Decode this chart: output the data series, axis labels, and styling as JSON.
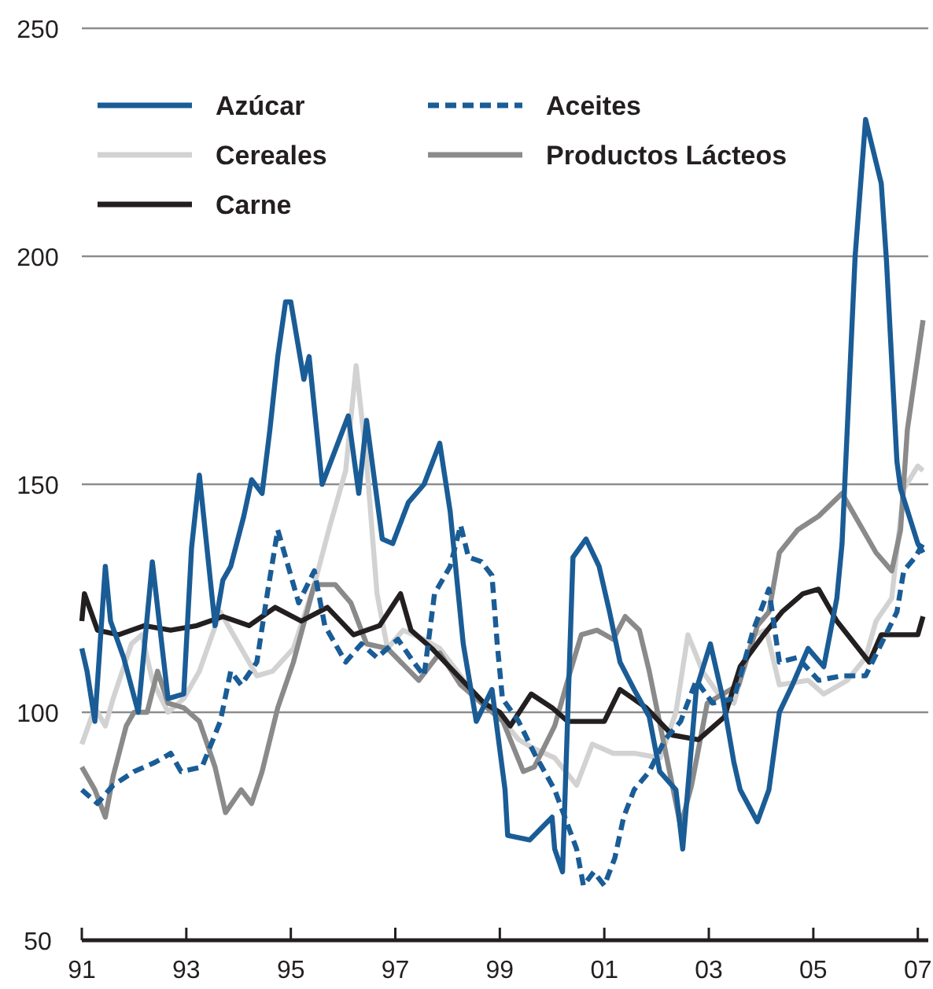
{
  "chart_data": {
    "type": "line",
    "xlim": [
      1991,
      2007.2
    ],
    "xticks": [
      {
        "value": 1991,
        "label": "91"
      },
      {
        "value": 1993,
        "label": "93"
      },
      {
        "value": 1995,
        "label": "95"
      },
      {
        "value": 1997,
        "label": "97"
      },
      {
        "value": 1999,
        "label": "99"
      },
      {
        "value": 2001,
        "label": "01"
      },
      {
        "value": 2003,
        "label": "03"
      },
      {
        "value": 2005,
        "label": "05"
      },
      {
        "value": 2007,
        "label": "07"
      }
    ],
    "ylim": [
      50,
      250
    ],
    "yticks": [
      50,
      100,
      150,
      200,
      250
    ],
    "grid": "y",
    "legend": "top left",
    "line_style": "solid",
    "series": [
      {
        "name": "Azúcar",
        "color": "#1a5c96",
        "x": [
          1991,
          1991.1,
          1991.25,
          1991.45,
          1991.55,
          1991.8,
          1992.08,
          1992.35,
          1992.65,
          1992.95,
          1993.1,
          1993.25,
          1993.55,
          1993.7,
          1993.85,
          1994.1,
          1994.25,
          1994.45,
          1994.6,
          1994.75,
          1994.9,
          1995,
          1995.25,
          1995.35,
          1995.6,
          1996.1,
          1996.3,
          1996.45,
          1996.75,
          1996.95,
          1997.25,
          1997.55,
          1997.85,
          1998.05,
          1998.3,
          1998.55,
          1998.85,
          1999.1,
          1999.15,
          1999.57,
          2000,
          2000.05,
          2000.2,
          2000.4,
          2000.65,
          2000.9,
          2001.1,
          2001.3,
          2001.57,
          2001.86,
          2002.06,
          2002.37,
          2002.5,
          2002.76,
          2003.03,
          2003.27,
          2003.48,
          2003.6,
          2003.93,
          2004.15,
          2004.35,
          2004.6,
          2004.9,
          2005.2,
          2005.45,
          2005.55,
          2005.8,
          2006,
          2006.3,
          2006.4,
          2006.6,
          2006.67,
          2007,
          2007.1
        ],
        "values": [
          114,
          109,
          98,
          132,
          120,
          112,
          100,
          133,
          103,
          104,
          136,
          152,
          119,
          129,
          132,
          143,
          151,
          148,
          162,
          178,
          190,
          190,
          173,
          178,
          150,
          165,
          148,
          164,
          138,
          137,
          146,
          150,
          159,
          144,
          115,
          98,
          105,
          83,
          73,
          72,
          77,
          70,
          65,
          134,
          138,
          132,
          122,
          111,
          105,
          99,
          87,
          83,
          70,
          105,
          115,
          103,
          89,
          83,
          76,
          83,
          100,
          106,
          114,
          110,
          125,
          137,
          200,
          230,
          216,
          199,
          155,
          149,
          137,
          135
        ]
      },
      {
        "name": "Aceites",
        "color": "#1a5c96",
        "line_style": "dashed",
        "x": [
          1991,
          1991.3,
          1991.6,
          1992,
          1992.4,
          1992.7,
          1992.9,
          1993.3,
          1993.65,
          1993.85,
          1994.05,
          1994.35,
          1994.55,
          1994.75,
          1994.95,
          1995.15,
          1995.45,
          1995.65,
          1996.05,
          1996.35,
          1996.65,
          1997.05,
          1997.35,
          1997.55,
          1997.75,
          1998.05,
          1998.25,
          1998.4,
          1998.65,
          1998.85,
          1998.95,
          1999.05,
          1999.36,
          1999.66,
          2000.05,
          2000.47,
          2000.6,
          2000.8,
          2001,
          2001.2,
          2001.37,
          2001.57,
          2001.86,
          2002.16,
          2002.46,
          2002.76,
          2003.07,
          2003.48,
          2003.85,
          2004.15,
          2004.35,
          2004.7,
          2005.1,
          2005.55,
          2006,
          2006.3,
          2006.6,
          2006.73,
          2006.95,
          2007.1
        ],
        "values": [
          83,
          80,
          84,
          87,
          89,
          91,
          87,
          88,
          98,
          109,
          106,
          111,
          126,
          140,
          132,
          124,
          131,
          119,
          111,
          115,
          112,
          116,
          111,
          108,
          126,
          132,
          141,
          134,
          133,
          130,
          115,
          103,
          98,
          91,
          83,
          70,
          62,
          65,
          62,
          68,
          77,
          83,
          87,
          94,
          98,
          107,
          102,
          103,
          118,
          127,
          111,
          112,
          107,
          108,
          108,
          115,
          122,
          131,
          134,
          137
        ]
      },
      {
        "name": "Cereales",
        "color": "#d2d2d2",
        "x": [
          1991,
          1991.25,
          1991.45,
          1991.6,
          1991.95,
          1992.15,
          1992.35,
          1992.65,
          1992.95,
          1993.25,
          1993.65,
          1993.95,
          1994.35,
          1994.65,
          1995.05,
          1995.45,
          1995.75,
          1996.05,
          1996.25,
          1996.45,
          1996.65,
          1996.85,
          1997.15,
          1997.55,
          1997.85,
          1998.25,
          1998.65,
          1999,
          1999.36,
          1999.66,
          2000.05,
          2000.47,
          2000.77,
          2001.17,
          2001.57,
          2002.07,
          2002.37,
          2002.6,
          2002.88,
          2003.18,
          2003.48,
          2003.85,
          2004.1,
          2004.35,
          2004.9,
          2005.2,
          2005.65,
          2006,
          2006.2,
          2006.5,
          2006.73,
          2007,
          2007.1
        ],
        "values": [
          93,
          101,
          97,
          103,
          115,
          117,
          107,
          100,
          103,
          109,
          122,
          116,
          108,
          109,
          114,
          128,
          141,
          153,
          176,
          155,
          126,
          114,
          118,
          116,
          114,
          108,
          102,
          99,
          94,
          92,
          90,
          84,
          93,
          91,
          91,
          90,
          100,
          117,
          109,
          104,
          102,
          117,
          118,
          106,
          107,
          104,
          107,
          112,
          120,
          125,
          149,
          154,
          153
        ]
      },
      {
        "name": "Productos Lácteos",
        "color": "#8a8a8a",
        "x": [
          1991,
          1991.25,
          1991.45,
          1991.6,
          1991.85,
          1992,
          1992.25,
          1992.45,
          1992.65,
          1992.95,
          1993.25,
          1993.55,
          1993.75,
          1994.05,
          1994.25,
          1994.45,
          1994.75,
          1995.05,
          1995.45,
          1995.85,
          1996.15,
          1996.45,
          1996.85,
          1997.45,
          1997.85,
          1998.25,
          1998.65,
          1999.06,
          1999.45,
          1999.66,
          2000.05,
          2000.35,
          2000.56,
          2000.86,
          2001.17,
          2001.4,
          2001.67,
          2001.86,
          2002.16,
          2002.46,
          2002.67,
          2002.97,
          2003.27,
          2003.57,
          2003.93,
          2004.15,
          2004.35,
          2004.7,
          2005.1,
          2005.55,
          2006.2,
          2006.5,
          2006.67,
          2006.8,
          2007.1
        ],
        "values": [
          88,
          83,
          77,
          86,
          97,
          100,
          100,
          109,
          102,
          101,
          98,
          88,
          78,
          83,
          80,
          87,
          101,
          111,
          128,
          128,
          124,
          115,
          114,
          107,
          113,
          106,
          102,
          98,
          87,
          88,
          97,
          109,
          117,
          118,
          116,
          121,
          118,
          109,
          92,
          75,
          84,
          102,
          104,
          106,
          119,
          122,
          135,
          140,
          143,
          148,
          135,
          131,
          140,
          162,
          186
        ]
      },
      {
        "name": "Carne",
        "color": "#231f20",
        "x": [
          1991,
          1991.05,
          1991.3,
          1991.7,
          1992.2,
          1992.7,
          1993.2,
          1993.7,
          1994.2,
          1994.7,
          1995.2,
          1995.7,
          1996.2,
          1996.7,
          1997.1,
          1997.3,
          1997.7,
          1998.2,
          1998.7,
          1999,
          1999.2,
          1999.6,
          2000,
          2000.3,
          2000.7,
          2001,
          2001.3,
          2001.8,
          2002.3,
          2002.8,
          2003.3,
          2003.6,
          2004.05,
          2004.4,
          2004.8,
          2005.1,
          2005.45,
          2006.07,
          2006.3,
          2006.5,
          2007,
          2007.1
        ],
        "values": [
          120,
          126,
          118,
          117,
          119,
          118,
          119,
          121,
          119,
          123,
          120,
          123,
          117,
          119,
          126,
          118,
          114,
          108,
          102,
          100,
          97,
          104,
          101,
          98,
          98,
          98,
          105,
          101,
          95,
          94,
          99,
          110,
          117,
          122,
          126,
          127,
          120,
          111,
          117,
          117,
          117,
          121
        ]
      }
    ]
  }
}
